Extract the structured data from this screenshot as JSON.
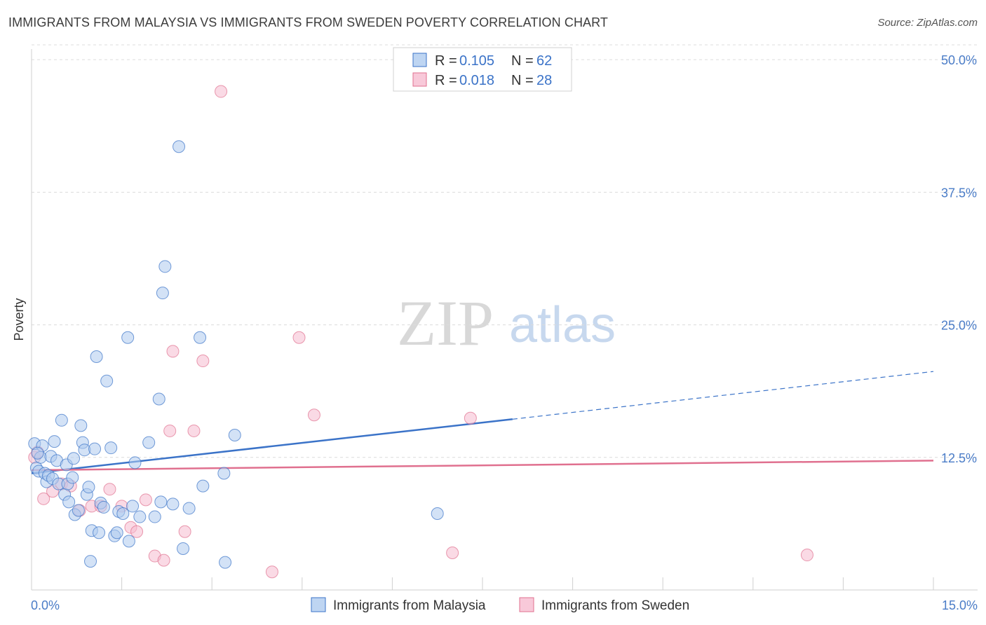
{
  "header": {
    "title": "IMMIGRANTS FROM MALAYSIA VS IMMIGRANTS FROM SWEDEN POVERTY CORRELATION CHART",
    "source": "Source: ZipAtlas.com"
  },
  "watermark": {
    "zip": "ZIP",
    "atlas": "atlas"
  },
  "colors": {
    "blue": "#3b73c8",
    "blue_fill": "#aecbef",
    "pink": "#e0708f",
    "pink_fill": "#f6bcd0",
    "grid": "#dcdcdc",
    "tick_label": "#4a7cc7"
  },
  "chart_data": {
    "type": "scatter",
    "title": "IMMIGRANTS FROM MALAYSIA VS IMMIGRANTS FROM SWEDEN POVERTY CORRELATION CHART",
    "xlabel": "",
    "ylabel": "Poverty",
    "xlim": [
      0,
      15
    ],
    "ylim": [
      0,
      51
    ],
    "x_tick_labels": [
      "0.0%",
      "15.0%"
    ],
    "y_ticks": [
      12.5,
      25.0,
      37.5,
      50.0
    ],
    "y_tick_labels": [
      "12.5%",
      "25.0%",
      "37.5%",
      "50.0%"
    ],
    "legend": [
      {
        "name": "Immigrants from Malaysia",
        "r_label": "R =",
        "r_value": "0.105",
        "n_label": "N =",
        "n_value": "62"
      },
      {
        "name": "Immigrants from Sweden",
        "r_label": "R =",
        "r_value": "0.018",
        "n_label": "N =",
        "n_value": "28"
      }
    ],
    "series": [
      {
        "name": "Immigrants from Malaysia",
        "color": "#3b73c8",
        "trend": {
          "x0": 0,
          "y0": 11.0,
          "x1": 8.0,
          "y1": 16.1,
          "dash_to_x": 15,
          "dash_to_y": 20.6
        },
        "points": [
          [
            0.05,
            13.8
          ],
          [
            0.08,
            11.5
          ],
          [
            0.12,
            11.2
          ],
          [
            0.15,
            12.5
          ],
          [
            0.18,
            13.6
          ],
          [
            0.22,
            11.0
          ],
          [
            0.25,
            10.2
          ],
          [
            0.28,
            10.8
          ],
          [
            0.32,
            12.6
          ],
          [
            0.35,
            10.5
          ],
          [
            0.38,
            14.0
          ],
          [
            0.42,
            12.2
          ],
          [
            0.45,
            10.0
          ],
          [
            0.5,
            16.0
          ],
          [
            0.55,
            9.0
          ],
          [
            0.58,
            11.8
          ],
          [
            0.6,
            10.0
          ],
          [
            0.62,
            8.3
          ],
          [
            0.68,
            10.6
          ],
          [
            0.7,
            12.4
          ],
          [
            0.72,
            7.1
          ],
          [
            0.78,
            7.5
          ],
          [
            0.82,
            15.5
          ],
          [
            0.85,
            13.9
          ],
          [
            0.88,
            13.2
          ],
          [
            0.92,
            9.0
          ],
          [
            0.95,
            9.7
          ],
          [
            0.98,
            2.7
          ],
          [
            1.0,
            5.6
          ],
          [
            1.05,
            13.3
          ],
          [
            1.08,
            22.0
          ],
          [
            1.12,
            5.4
          ],
          [
            1.15,
            8.2
          ],
          [
            1.2,
            7.8
          ],
          [
            1.25,
            19.7
          ],
          [
            1.32,
            13.4
          ],
          [
            1.38,
            5.1
          ],
          [
            1.42,
            5.4
          ],
          [
            1.45,
            7.4
          ],
          [
            1.52,
            7.2
          ],
          [
            1.6,
            23.8
          ],
          [
            1.62,
            4.6
          ],
          [
            1.68,
            7.9
          ],
          [
            1.72,
            12.0
          ],
          [
            1.8,
            6.9
          ],
          [
            1.95,
            13.9
          ],
          [
            2.05,
            6.9
          ],
          [
            2.12,
            18.0
          ],
          [
            2.15,
            8.3
          ],
          [
            2.18,
            28.0
          ],
          [
            2.22,
            30.5
          ],
          [
            2.35,
            8.1
          ],
          [
            2.45,
            41.8
          ],
          [
            2.52,
            3.9
          ],
          [
            2.62,
            7.7
          ],
          [
            2.8,
            23.8
          ],
          [
            2.85,
            9.8
          ],
          [
            3.2,
            11.0
          ],
          [
            3.38,
            14.6
          ],
          [
            3.22,
            2.6
          ],
          [
            6.75,
            7.2
          ],
          [
            0.1,
            12.9
          ]
        ]
      },
      {
        "name": "Immigrants from Sweden",
        "color": "#e0708f",
        "trend": {
          "x0": 0,
          "y0": 11.3,
          "x1": 15,
          "y1": 12.2
        },
        "points": [
          [
            0.05,
            12.5
          ],
          [
            0.1,
            13.0
          ],
          [
            0.2,
            8.6
          ],
          [
            0.35,
            9.3
          ],
          [
            0.5,
            10.0
          ],
          [
            0.65,
            9.8
          ],
          [
            0.8,
            7.5
          ],
          [
            1.0,
            7.9
          ],
          [
            1.15,
            7.9
          ],
          [
            1.3,
            9.5
          ],
          [
            1.5,
            7.9
          ],
          [
            1.65,
            5.9
          ],
          [
            1.75,
            5.5
          ],
          [
            1.9,
            8.5
          ],
          [
            2.05,
            3.2
          ],
          [
            2.2,
            2.8
          ],
          [
            2.3,
            15.0
          ],
          [
            2.35,
            22.5
          ],
          [
            2.55,
            5.5
          ],
          [
            2.7,
            15.0
          ],
          [
            2.85,
            21.6
          ],
          [
            3.15,
            47.0
          ],
          [
            4.0,
            1.7
          ],
          [
            4.45,
            23.8
          ],
          [
            4.7,
            16.5
          ],
          [
            7.0,
            3.5
          ],
          [
            7.3,
            16.2
          ],
          [
            12.9,
            3.3
          ]
        ]
      }
    ]
  }
}
